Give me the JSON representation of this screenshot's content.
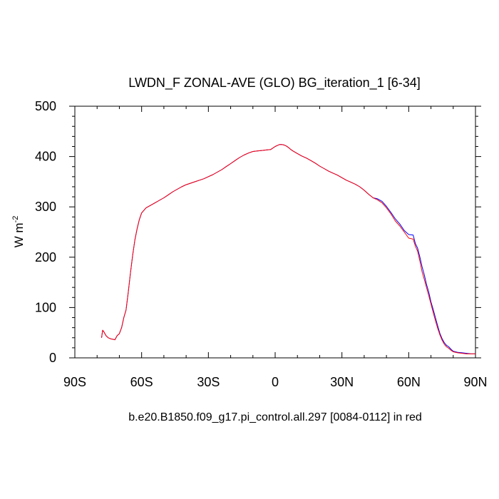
{
  "chart_data": {
    "type": "line",
    "title": "LWDN_F ZONAL-AVE (GLO) BG_iteration_1 [6-34]",
    "xlabel": "b.e20.B1850.f09_g17.pi_control.all.297 [0084-0112] in red",
    "ylabel_base": "W m",
    "ylabel_exp": "-2",
    "xlim": [
      -90,
      90
    ],
    "ylim": [
      0,
      500
    ],
    "x_ticks": [
      -90,
      -60,
      -30,
      0,
      30,
      60,
      90
    ],
    "x_tick_labels": [
      "90S",
      "60S",
      "30S",
      "0",
      "30N",
      "60N",
      "90N"
    ],
    "y_ticks": [
      0,
      100,
      200,
      300,
      400,
      500
    ],
    "y_tick_labels": [
      "0",
      "100",
      "200",
      "300",
      "400",
      "500"
    ],
    "grid": false,
    "series": [
      {
        "color": "#0000ff",
        "x": [
          -78,
          -77.5,
          -77,
          -76,
          -75,
          -74,
          -73,
          -72,
          -71,
          -70,
          -69,
          -68,
          -67,
          -66,
          -65,
          -64,
          -63,
          -62,
          -61,
          -60,
          -58,
          -56,
          -54,
          -52,
          -50,
          -48,
          -46,
          -44,
          -42,
          -40,
          -38,
          -36,
          -34,
          -32,
          -30,
          -28,
          -26,
          -24,
          -22,
          -20,
          -18,
          -16,
          -14,
          -12,
          -10,
          -8,
          -6,
          -4,
          -2,
          0,
          1,
          2,
          3,
          4,
          5,
          6,
          7,
          8,
          10,
          12,
          14,
          16,
          18,
          20,
          22,
          24,
          26,
          28,
          30,
          32,
          34,
          36,
          38,
          40,
          42,
          44,
          46,
          48,
          50,
          52,
          54,
          56,
          58,
          60,
          62,
          63,
          64,
          65,
          66,
          67,
          68,
          69,
          70,
          71,
          72,
          73,
          74,
          75,
          76,
          77,
          78,
          79,
          80,
          82,
          84,
          86,
          88,
          90
        ],
        "y": [
          40,
          55,
          52,
          44,
          40,
          38,
          37,
          36,
          44,
          48,
          60,
          80,
          95,
          130,
          170,
          205,
          235,
          257,
          275,
          288,
          298,
          303,
          308,
          313,
          318,
          324,
          330,
          335,
          340,
          344,
          347,
          350,
          353,
          356,
          360,
          364,
          369,
          374,
          380,
          386,
          392,
          398,
          403,
          407,
          410,
          411,
          412,
          413,
          414,
          420,
          422,
          424,
          424,
          423,
          421,
          418,
          414,
          411,
          406,
          401,
          397,
          392,
          387,
          381,
          376,
          371,
          367,
          363,
          358,
          353,
          349,
          345,
          340,
          333,
          325,
          318,
          316,
          311,
          301,
          289,
          276,
          266,
          253,
          245,
          244,
          227,
          218,
          201,
          181,
          165,
          146,
          131,
          111,
          96,
          80,
          64,
          49,
          38,
          30,
          25,
          22,
          17,
          13,
          11,
          10,
          9,
          8,
          8
        ]
      },
      {
        "color": "#ff0000",
        "x": [
          -78,
          -77.5,
          -77,
          -76,
          -75,
          -74,
          -73,
          -72,
          -71,
          -70,
          -69,
          -68,
          -67,
          -66,
          -65,
          -64,
          -63,
          -62,
          -61,
          -60,
          -58,
          -56,
          -54,
          -52,
          -50,
          -48,
          -46,
          -44,
          -42,
          -40,
          -38,
          -36,
          -34,
          -32,
          -30,
          -28,
          -26,
          -24,
          -22,
          -20,
          -18,
          -16,
          -14,
          -12,
          -10,
          -8,
          -6,
          -4,
          -2,
          0,
          1,
          2,
          3,
          4,
          5,
          6,
          7,
          8,
          10,
          12,
          14,
          16,
          18,
          20,
          22,
          24,
          26,
          28,
          30,
          32,
          34,
          36,
          38,
          40,
          42,
          44,
          46,
          48,
          50,
          52,
          54,
          56,
          58,
          60,
          62,
          63,
          64,
          65,
          66,
          67,
          68,
          69,
          70,
          71,
          72,
          73,
          74,
          75,
          76,
          77,
          78,
          79,
          80,
          82,
          84,
          86,
          88,
          90
        ],
        "y": [
          40,
          55,
          52,
          44,
          40,
          38,
          37,
          36,
          44,
          48,
          60,
          80,
          95,
          130,
          170,
          205,
          235,
          257,
          275,
          288,
          298,
          303,
          308,
          313,
          318,
          324,
          330,
          335,
          340,
          344,
          347,
          350,
          353,
          356,
          360,
          364,
          369,
          374,
          380,
          386,
          392,
          398,
          403,
          407,
          410,
          411,
          412,
          413,
          414,
          420,
          422,
          424,
          424,
          423,
          421,
          418,
          414,
          411,
          406,
          401,
          397,
          392,
          387,
          381,
          376,
          371,
          367,
          363,
          358,
          353,
          349,
          345,
          340,
          333,
          325,
          318,
          314,
          308,
          298,
          286,
          272,
          262,
          250,
          238,
          236,
          222,
          212,
          193,
          171,
          156,
          140,
          124,
          107,
          90,
          74,
          59,
          46,
          35,
          27,
          22,
          19,
          15,
          12,
          10,
          9,
          8,
          8,
          8
        ]
      }
    ]
  }
}
